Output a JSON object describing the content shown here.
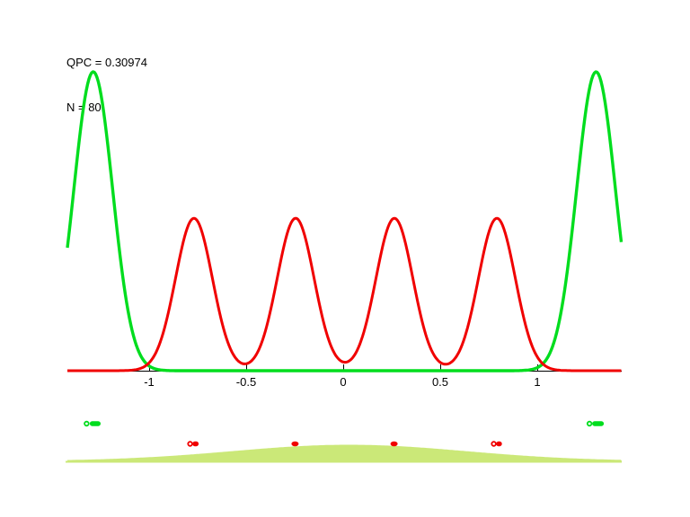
{
  "annotation": {
    "line1": "QPC = 0.30974",
    "line2": "N = 80"
  },
  "colors": {
    "curve_red": "#f00000",
    "curve_green": "#00dd1e",
    "wavepacket_fill": "#cbe878",
    "axis": "#000000",
    "text": "#000000",
    "background": "#ffffff"
  },
  "chart_data": [
    {
      "type": "line",
      "title": "QPC = 0.30974, N = 80",
      "xlabel": "",
      "ylabel": "",
      "grid": false,
      "legend": null,
      "xlim": [
        -1.421,
        1.435
      ],
      "ylim": [
        0,
        1.1
      ],
      "x_ticks": [
        -1,
        -0.5,
        0,
        0.5,
        1
      ],
      "x_tick_labels": [
        "-1",
        "-0.5",
        "0",
        "0.5",
        "1"
      ],
      "series": [
        {
          "name": "green-state-density",
          "color_key": "curve_green",
          "shape": "gaussian-mixture",
          "sigma": 0.1,
          "peaks": [
            {
              "x": -1.288,
              "height": 1.0
            },
            {
              "x": 1.303,
              "height": 1.0
            }
          ]
        },
        {
          "name": "red-state-density",
          "color_key": "curve_red",
          "shape": "gaussian-mixture",
          "sigma": 0.095,
          "peaks": [
            {
              "x": -0.769,
              "height": 0.51
            },
            {
              "x": -0.245,
              "height": 0.51
            },
            {
              "x": 0.264,
              "height": 0.51
            },
            {
              "x": 0.792,
              "height": 0.51
            }
          ]
        }
      ]
    },
    {
      "type": "area",
      "name": "wavepacket-panel",
      "hump": {
        "center": 0.03,
        "sigma": 0.6,
        "height": 1.0,
        "color_key": "wavepacket_fill"
      },
      "green_markers": [
        {
          "shape": "ring",
          "x": -1.322
        },
        {
          "shape": "pill",
          "x1": -1.306,
          "x2": -1.25
        },
        {
          "shape": "ring",
          "x": 1.269
        },
        {
          "shape": "pill",
          "x1": 1.283,
          "x2": 1.343
        }
      ],
      "red_markers": [
        {
          "shape": "ring",
          "x": -0.789
        },
        {
          "shape": "pill",
          "x1": -0.777,
          "x2": -0.745
        },
        {
          "shape": "dot",
          "x": -0.248
        },
        {
          "shape": "dot",
          "x": 0.262
        },
        {
          "shape": "ring",
          "x": 0.776
        },
        {
          "shape": "pill",
          "x1": 0.788,
          "x2": 0.818
        }
      ]
    }
  ]
}
